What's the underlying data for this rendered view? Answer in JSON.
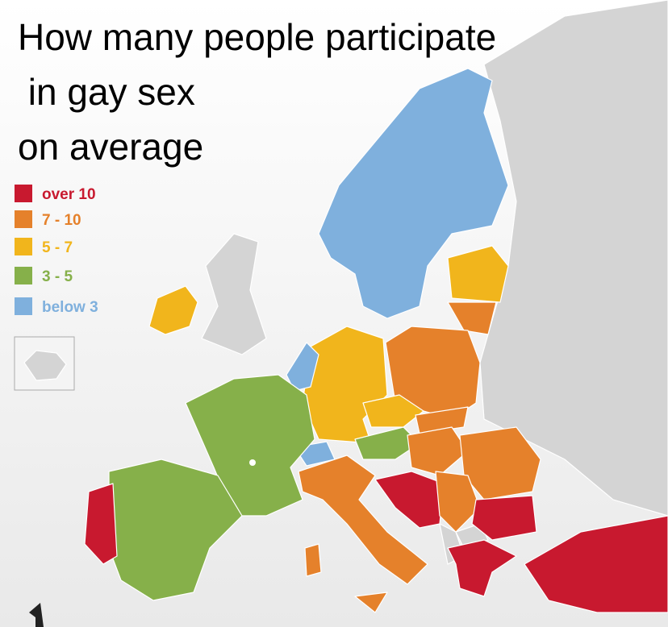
{
  "title": [
    "How many people participate",
    " in gay sex",
    "on average"
  ],
  "legend": [
    {
      "label": "over 10",
      "color": "#c8192f"
    },
    {
      "label": "7 - 10",
      "color": "#e5812b"
    },
    {
      "label": "5 - 7",
      "color": "#f1b51c"
    },
    {
      "label": "3 - 5",
      "color": "#86b04a"
    },
    {
      "label": "below 3",
      "color": "#7fb0dd"
    }
  ]
}
